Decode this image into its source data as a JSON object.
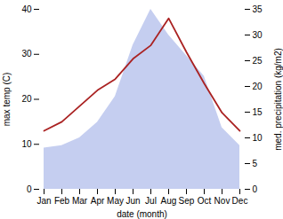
{
  "chart_data": {
    "type": "line",
    "categories": [
      "Jan",
      "Feb",
      "Mar",
      "Apr",
      "May",
      "Jun",
      "Jul",
      "Aug",
      "Sep",
      "Oct",
      "Nov",
      "Dec"
    ],
    "xlabel": "date (month)",
    "ylabel": "max temp (C)",
    "y2label": "med. precipitation (kg/m2)",
    "ylim": [
      0,
      40
    ],
    "yticks": [
      0,
      10,
      20,
      30,
      40
    ],
    "y2lim": [
      0,
      35
    ],
    "y2ticks": [
      0,
      5,
      10,
      15,
      20,
      25,
      30,
      35
    ],
    "grid": false,
    "series": [
      {
        "type": "area",
        "axis": "y2",
        "color": "#c5cef0",
        "values": [
          8.0,
          8.5,
          10.0,
          13.0,
          18.0,
          28.0,
          35.0,
          30.0,
          26.0,
          22.0,
          12.0,
          8.5
        ]
      },
      {
        "type": "line",
        "color": "#aa2222",
        "values": [
          13.0,
          15.0,
          18.5,
          22.0,
          24.5,
          29.0,
          32.0,
          38.0,
          30.5,
          23.5,
          17.0,
          13.0
        ]
      }
    ]
  }
}
